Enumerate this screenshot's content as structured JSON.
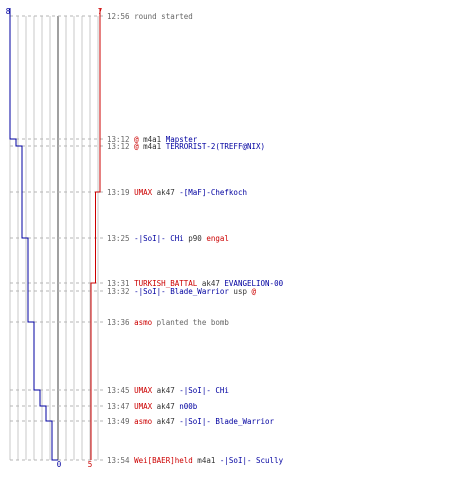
{
  "score": {
    "blue_start": "8",
    "red_start": "7",
    "blue_end": "0",
    "red_end": "5"
  },
  "colors": {
    "blue_team": "#0000a0",
    "red_team": "#cc0000",
    "event_text": "#666666",
    "grid": "#c8c8c8",
    "axis": "#808080"
  },
  "events": [
    {
      "time": "12:56",
      "parts": [
        {
          "text": "round started",
          "color": "gray"
        }
      ]
    },
    {
      "time": "13:12",
      "parts": [
        {
          "text": "@",
          "color": "red"
        },
        {
          "text": " m4a1 ",
          "color": "black"
        },
        {
          "text": "Mapster",
          "color": "blue"
        }
      ]
    },
    {
      "time": "13:12",
      "parts": [
        {
          "text": "@",
          "color": "red"
        },
        {
          "text": " m4a1 ",
          "color": "black"
        },
        {
          "text": "TERRORIST-2(TREFF@NIX)",
          "color": "blue"
        }
      ]
    },
    {
      "time": "13:19",
      "parts": [
        {
          "text": "UMAX",
          "color": "red"
        },
        {
          "text": " ak47 ",
          "color": "black"
        },
        {
          "text": "-[MaF]-Chefkoch",
          "color": "blue"
        }
      ]
    },
    {
      "time": "13:25",
      "parts": [
        {
          "text": "-|SoI|- CHi",
          "color": "blue"
        },
        {
          "text": " p90 ",
          "color": "black"
        },
        {
          "text": "engal",
          "color": "red"
        }
      ]
    },
    {
      "time": "13:31",
      "parts": [
        {
          "text": "TURKISH_BATTAL",
          "color": "red"
        },
        {
          "text": " ak47 ",
          "color": "black"
        },
        {
          "text": "EVANGELION-00",
          "color": "blue"
        }
      ]
    },
    {
      "time": "13:32",
      "parts": [
        {
          "text": "-|SoI|- Blade_Warrior",
          "color": "blue"
        },
        {
          "text": " usp ",
          "color": "black"
        },
        {
          "text": "@",
          "color": "red"
        }
      ]
    },
    {
      "time": "13:36",
      "parts": [
        {
          "text": "asmo",
          "color": "red"
        },
        {
          "text": " planted the bomb",
          "color": "gray"
        }
      ]
    },
    {
      "time": "13:45",
      "parts": [
        {
          "text": "UMAX",
          "color": "red"
        },
        {
          "text": " ak47 ",
          "color": "black"
        },
        {
          "text": "-|SoI|- CHi",
          "color": "blue"
        }
      ]
    },
    {
      "time": "13:47",
      "parts": [
        {
          "text": "UMAX",
          "color": "red"
        },
        {
          "text": " ak47 ",
          "color": "black"
        },
        {
          "text": "n00b",
          "color": "blue"
        }
      ]
    },
    {
      "time": "13:49",
      "parts": [
        {
          "text": "asmo",
          "color": "red"
        },
        {
          "text": " ak47 ",
          "color": "black"
        },
        {
          "text": "-|SoI|- Blade_Warrior",
          "color": "blue"
        }
      ]
    },
    {
      "time": "13:54",
      "parts": [
        {
          "text": "Wei[BAER]held",
          "color": "red"
        },
        {
          "text": " m4a1 ",
          "color": "black"
        },
        {
          "text": "-|SoI|- Scully",
          "color": "blue"
        }
      ]
    }
  ],
  "blue_alive": [
    8,
    8,
    7,
    6,
    6,
    5,
    5,
    5,
    4,
    3,
    2,
    1,
    0
  ],
  "red_alive": [
    7,
    7,
    7,
    7,
    6,
    6,
    5,
    5,
    5,
    5,
    5,
    5,
    5
  ]
}
